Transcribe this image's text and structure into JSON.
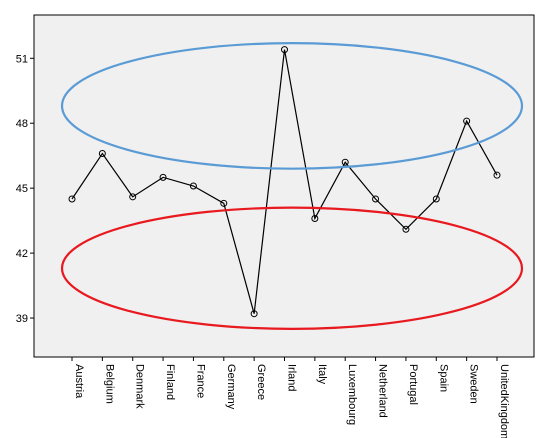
{
  "chart_data": {
    "type": "line",
    "title": "",
    "xlabel": "",
    "ylabel": "",
    "categories": [
      "Austria",
      "Belgium",
      "Denmark",
      "Finland",
      "France",
      "Germany",
      "Greece",
      "Irland",
      "Italy",
      "Luxembourg",
      "Netherland",
      "Portugal",
      "Spain",
      "Sweden",
      "UnitedKingdom"
    ],
    "series": [
      {
        "values": [
          44.5,
          46.6,
          44.6,
          45.5,
          45.1,
          44.3,
          39.2,
          51.4,
          43.6,
          46.2,
          44.5,
          43.1,
          44.5,
          48.1,
          45.6
        ]
      }
    ],
    "ylim": [
      37.2,
      53.0
    ],
    "yticks": [
      39,
      42,
      45,
      48,
      51
    ],
    "grid": false,
    "plot_background": "#f0f0f0",
    "line_color": "#000000",
    "annotations": [
      {
        "shape": "ellipse",
        "color": "#5b9bd5",
        "y_center": 48.8,
        "y_radius": 2.9
      },
      {
        "shape": "ellipse",
        "color": "#e8191f",
        "y_center": 41.3,
        "y_radius": 2.8
      }
    ]
  }
}
